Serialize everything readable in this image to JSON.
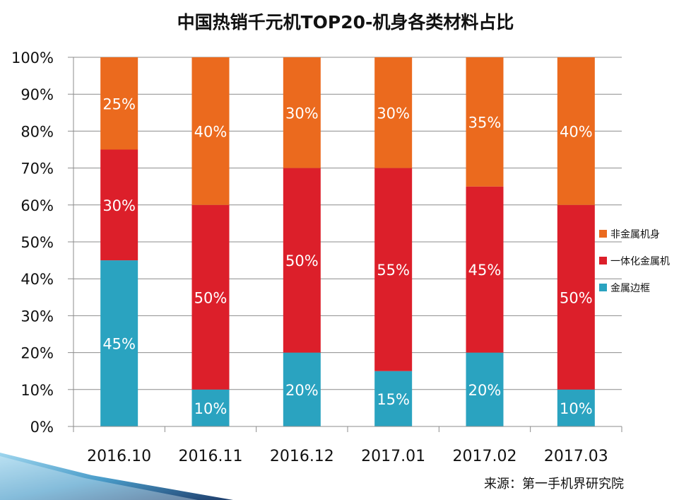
{
  "chart_data": {
    "type": "bar",
    "stacked": true,
    "title": "中国热销千元机TOP20-机身各类材料占比",
    "categories": [
      "2016.10",
      "2016.11",
      "2016.12",
      "2017.01",
      "2017.02",
      "2017.03"
    ],
    "series": [
      {
        "name": "金属边框",
        "color": "#2AA3C0",
        "values": [
          45,
          10,
          20,
          15,
          20,
          10
        ]
      },
      {
        "name": "一体化金属机",
        "color": "#DC1F2A",
        "values": [
          30,
          50,
          50,
          55,
          45,
          50
        ]
      },
      {
        "name": "非金属机身",
        "color": "#EB6A1E",
        "values": [
          25,
          40,
          30,
          30,
          35,
          40
        ]
      }
    ],
    "legend_order": [
      "非金属机身",
      "一体化金属机",
      "金属边框"
    ],
    "y_ticks": [
      "0%",
      "10%",
      "20%",
      "30%",
      "40%",
      "50%",
      "60%",
      "70%",
      "80%",
      "90%",
      "100%"
    ],
    "ylim": [
      0,
      100
    ],
    "grid": true,
    "legend_position": "right"
  },
  "source": "来源：第一手机界研究院"
}
